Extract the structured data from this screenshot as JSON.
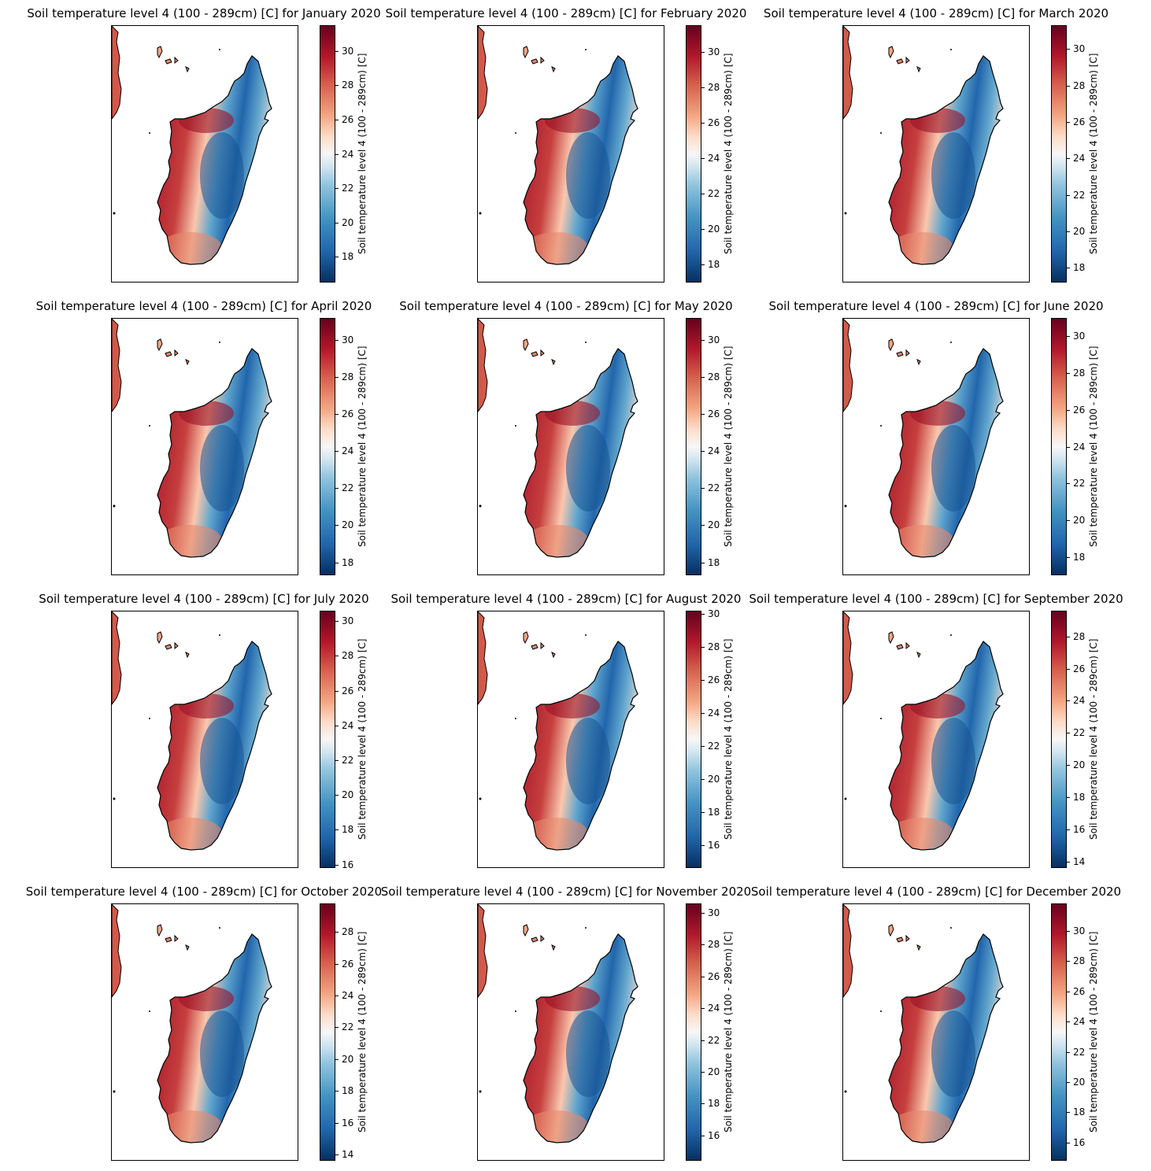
{
  "figure": {
    "colormap": "RdBu_r",
    "panels": [
      {
        "title": "Soil temperature level 4 (100 - 289cm) [C] for January 2020",
        "cbar_label": "Soil temperature level 4 (100 - 289cm) [C]",
        "vmin": 16.5,
        "vmax": 31.5,
        "ticks": [
          "18",
          "20",
          "22",
          "24",
          "26",
          "28",
          "30"
        ]
      },
      {
        "title": "Soil temperature level 4 (100 - 289cm) [C] for February 2020",
        "cbar_label": "Soil temperature level 4 (100 - 289cm) [C]",
        "vmin": 17.0,
        "vmax": 31.5,
        "ticks": [
          "18",
          "20",
          "22",
          "24",
          "26",
          "28",
          "30"
        ]
      },
      {
        "title": "Soil temperature level 4 (100 - 289cm) [C] for March 2020",
        "cbar_label": "Soil temperature level 4 (100 - 289cm) [C]",
        "vmin": 17.2,
        "vmax": 31.3,
        "ticks": [
          "18",
          "20",
          "22",
          "24",
          "26",
          "28",
          "30"
        ]
      },
      {
        "title": "Soil temperature level 4 (100 - 289cm) [C] for April 2020",
        "cbar_label": "Soil temperature level 4 (100 - 289cm) [C]",
        "vmin": 17.3,
        "vmax": 31.2,
        "ticks": [
          "18",
          "20",
          "22",
          "24",
          "26",
          "28",
          "30"
        ]
      },
      {
        "title": "Soil temperature level 4 (100 - 289cm) [C] for May 2020",
        "cbar_label": "Soil temperature level 4 (100 - 289cm) [C]",
        "vmin": 17.3,
        "vmax": 31.2,
        "ticks": [
          "18",
          "20",
          "22",
          "24",
          "26",
          "28",
          "30"
        ]
      },
      {
        "title": "Soil temperature level 4 (100 - 289cm) [C] for June 2020",
        "cbar_label": "Soil temperature level 4 (100 - 289cm) [C]",
        "vmin": 17.0,
        "vmax": 31.0,
        "ticks": [
          "18",
          "20",
          "22",
          "24",
          "26",
          "28",
          "30"
        ]
      },
      {
        "title": "Soil temperature level 4 (100 - 289cm) [C] for July 2020",
        "cbar_label": "Soil temperature level 4 (100 - 289cm) [C]",
        "vmin": 15.8,
        "vmax": 30.6,
        "ticks": [
          "16",
          "18",
          "20",
          "22",
          "24",
          "26",
          "28",
          "30"
        ]
      },
      {
        "title": "Soil temperature level 4 (100 - 289cm) [C] for August 2020",
        "cbar_label": "Soil temperature level 4 (100 - 289cm) [C]",
        "vmin": 14.6,
        "vmax": 30.2,
        "ticks": [
          "16",
          "18",
          "20",
          "22",
          "24",
          "26",
          "28",
          "30"
        ]
      },
      {
        "title": "Soil temperature level 4 (100 - 289cm) [C] for September 2020",
        "cbar_label": "Soil temperature level 4 (100 - 289cm) [C]",
        "vmin": 13.6,
        "vmax": 29.6,
        "ticks": [
          "14",
          "16",
          "18",
          "20",
          "22",
          "24",
          "26",
          "28"
        ]
      },
      {
        "title": "Soil temperature level 4 (100 - 289cm) [C] for October 2020",
        "cbar_label": "Soil temperature level 4 (100 - 289cm) [C]",
        "vmin": 13.6,
        "vmax": 29.8,
        "ticks": [
          "14",
          "16",
          "18",
          "20",
          "22",
          "24",
          "26",
          "28"
        ]
      },
      {
        "title": "Soil temperature level 4 (100 - 289cm) [C] for November 2020",
        "cbar_label": "Soil temperature level 4 (100 - 289cm) [C]",
        "vmin": 14.4,
        "vmax": 30.6,
        "ticks": [
          "16",
          "18",
          "20",
          "22",
          "24",
          "26",
          "28",
          "30"
        ]
      },
      {
        "title": "Soil temperature level 4 (100 - 289cm) [C] for December 2020",
        "cbar_label": "Soil temperature level 4 (100 - 289cm) [C]",
        "vmin": 14.8,
        "vmax": 31.8,
        "ticks": [
          "16",
          "18",
          "20",
          "22",
          "24",
          "26",
          "28",
          "30"
        ]
      }
    ]
  }
}
